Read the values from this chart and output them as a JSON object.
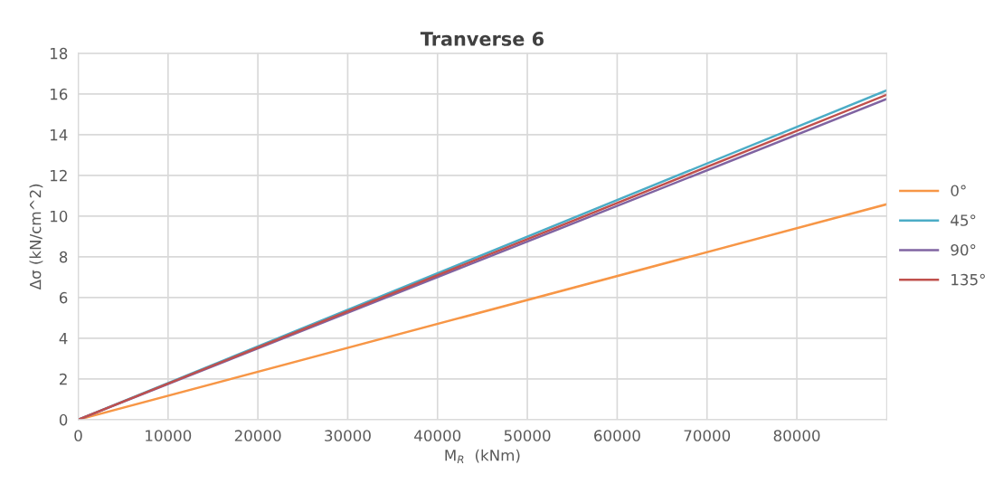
{
  "chart_data": {
    "type": "line",
    "title": "Tranverse 6",
    "xlabel": "M$_{R}$  (kNm)",
    "ylabel": "Δσ (kN/cm^2)",
    "x": [
      0,
      90000
    ],
    "series": [
      {
        "name": "0°",
        "color": "#f79646",
        "values": [
          0,
          10.58
        ]
      },
      {
        "name": "45°",
        "color": "#4bacc6",
        "values": [
          0,
          16.18
        ]
      },
      {
        "name": "90°",
        "color": "#8064a2",
        "values": [
          0,
          15.75
        ]
      },
      {
        "name": "135°",
        "color": "#c0504d",
        "values": [
          0,
          15.96
        ]
      }
    ],
    "xlim": [
      0,
      90000
    ],
    "xticks": [
      0,
      10000,
      20000,
      30000,
      40000,
      50000,
      60000,
      70000,
      80000
    ],
    "ylim": [
      0,
      18
    ],
    "yticks": [
      0,
      2,
      4,
      6,
      8,
      10,
      12,
      14,
      16,
      18
    ],
    "grid": true,
    "legend": "right",
    "marker": "none",
    "line_style": "solid"
  }
}
